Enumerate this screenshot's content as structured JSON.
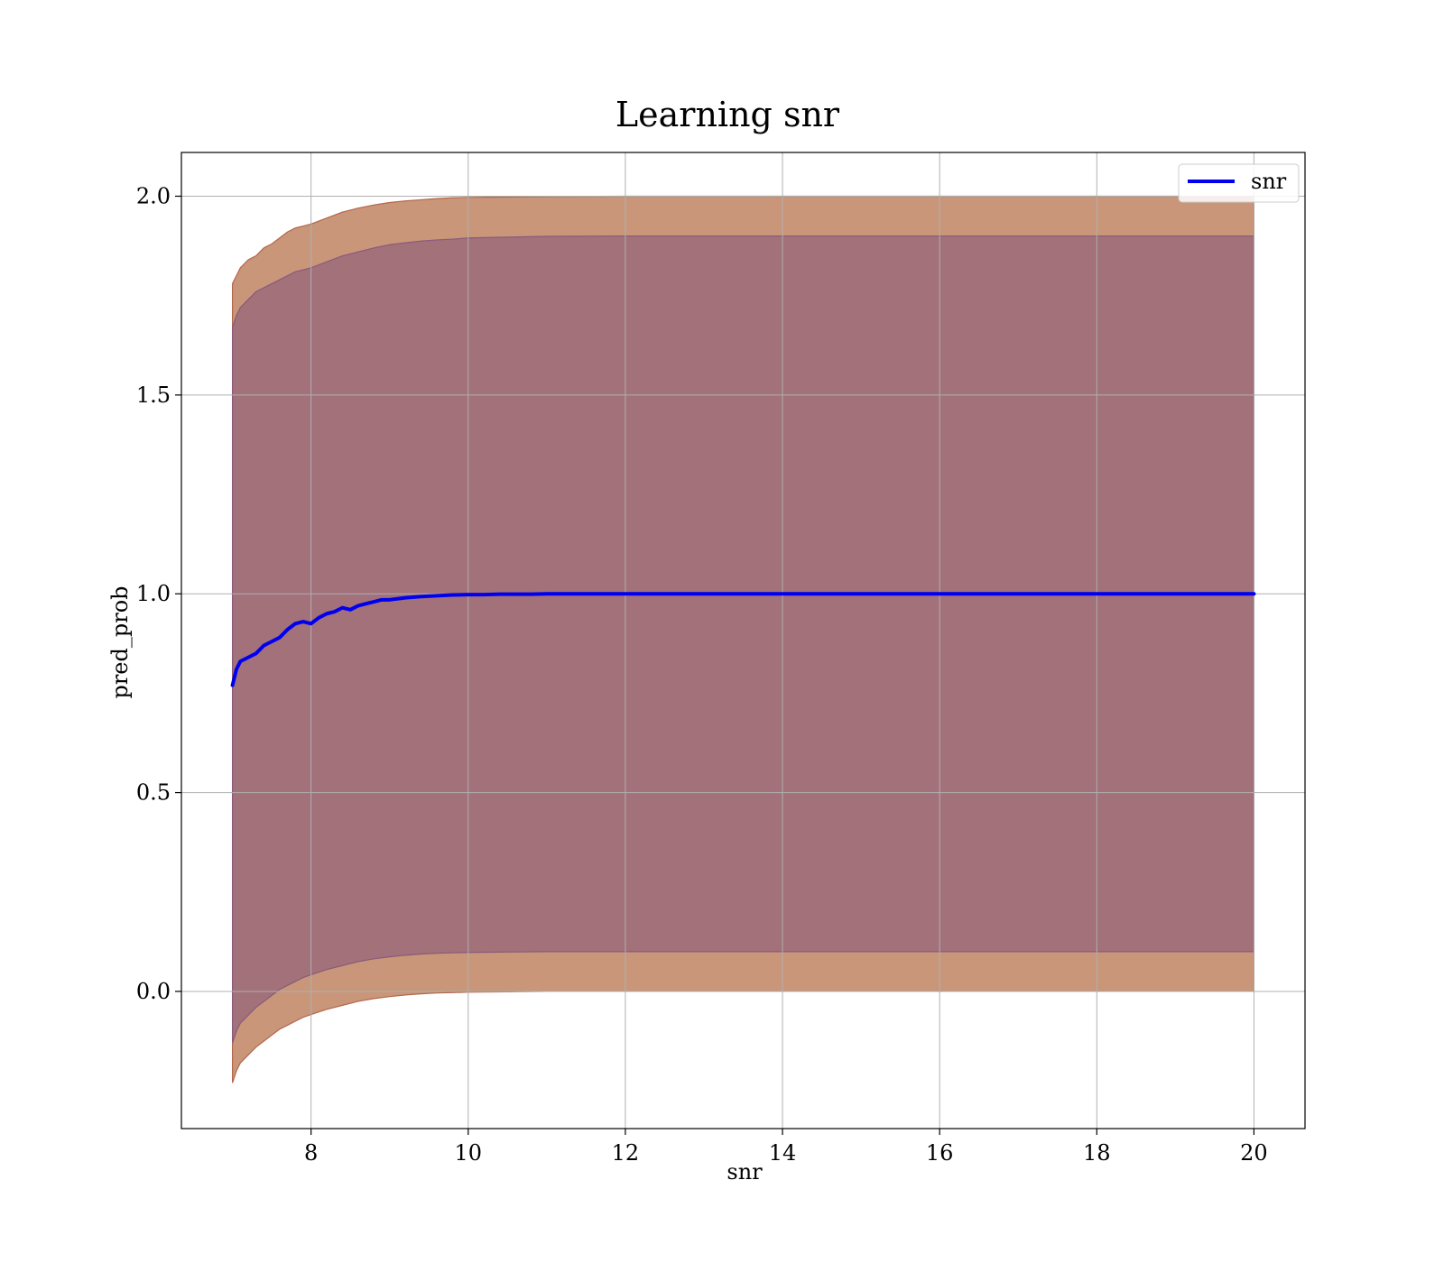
{
  "chart_data": {
    "type": "line",
    "title": "Learning snr",
    "xlabel": "snr",
    "ylabel": "pred_prob",
    "xlim": [
      6.35,
      20.65
    ],
    "ylim": [
      -0.345,
      2.11
    ],
    "xticks": [
      8,
      10,
      12,
      14,
      16,
      18,
      20
    ],
    "yticks": [
      0.0,
      0.5,
      1.0,
      1.5,
      2.0
    ],
    "xtick_labels": [
      "8",
      "10",
      "12",
      "14",
      "16",
      "18",
      "20"
    ],
    "ytick_labels": [
      "0.0",
      "0.5",
      "1.0",
      "1.5",
      "2.0"
    ],
    "grid": true,
    "legend": {
      "position": "top-right",
      "entries": [
        "snr"
      ]
    },
    "series": [
      {
        "name": "snr",
        "color": "#0000ee",
        "x": [
          7.0,
          7.05,
          7.1,
          7.2,
          7.3,
          7.4,
          7.5,
          7.6,
          7.7,
          7.8,
          7.9,
          8.0,
          8.1,
          8.2,
          8.3,
          8.4,
          8.5,
          8.6,
          8.7,
          8.8,
          8.9,
          9.0,
          9.2,
          9.4,
          9.6,
          9.8,
          10.0,
          10.2,
          10.4,
          10.6,
          10.8,
          11.0,
          11.5,
          12.0,
          13.0,
          14.0,
          16.0,
          18.0,
          20.0
        ],
        "y": [
          0.77,
          0.81,
          0.83,
          0.84,
          0.85,
          0.87,
          0.88,
          0.89,
          0.91,
          0.925,
          0.93,
          0.925,
          0.94,
          0.95,
          0.955,
          0.965,
          0.96,
          0.97,
          0.975,
          0.98,
          0.985,
          0.985,
          0.99,
          0.993,
          0.995,
          0.997,
          0.998,
          0.998,
          0.999,
          0.999,
          0.999,
          1.0,
          1.0,
          1.0,
          1.0,
          1.0,
          1.0,
          1.0,
          1.0
        ]
      }
    ],
    "bands": [
      {
        "color": "#c9967a",
        "edge_color": "#b5664a",
        "x": [
          7.0,
          7.05,
          7.1,
          7.2,
          7.3,
          7.4,
          7.5,
          7.6,
          7.7,
          7.8,
          7.9,
          8.0,
          8.2,
          8.4,
          8.6,
          8.8,
          9.0,
          9.2,
          9.4,
          9.6,
          9.8,
          10.0,
          10.5,
          11.0,
          12.0,
          14.0,
          17.0,
          20.0
        ],
        "upper": [
          1.78,
          1.8,
          1.82,
          1.84,
          1.85,
          1.87,
          1.88,
          1.895,
          1.91,
          1.92,
          1.925,
          1.93,
          1.945,
          1.96,
          1.97,
          1.978,
          1.984,
          1.988,
          1.991,
          1.994,
          1.996,
          1.997,
          1.998,
          1.999,
          2.0,
          2.0,
          2.0,
          2.0
        ],
        "lower": [
          -0.23,
          -0.2,
          -0.18,
          -0.16,
          -0.14,
          -0.125,
          -0.11,
          -0.095,
          -0.085,
          -0.075,
          -0.065,
          -0.058,
          -0.045,
          -0.035,
          -0.025,
          -0.018,
          -0.013,
          -0.009,
          -0.006,
          -0.004,
          -0.003,
          -0.002,
          -0.001,
          0.0,
          0.0,
          0.0,
          0.0,
          0.0
        ]
      },
      {
        "color": "#a2717a",
        "edge_color": "#8a5a7a",
        "x": [
          7.0,
          7.05,
          7.1,
          7.2,
          7.3,
          7.4,
          7.5,
          7.6,
          7.7,
          7.8,
          7.9,
          8.0,
          8.2,
          8.4,
          8.6,
          8.8,
          9.0,
          9.2,
          9.4,
          9.6,
          9.8,
          10.0,
          10.5,
          11.0,
          12.0,
          14.0,
          17.0,
          20.0
        ],
        "upper": [
          1.67,
          1.7,
          1.72,
          1.74,
          1.76,
          1.77,
          1.78,
          1.79,
          1.8,
          1.81,
          1.815,
          1.82,
          1.835,
          1.85,
          1.86,
          1.87,
          1.878,
          1.883,
          1.887,
          1.89,
          1.892,
          1.895,
          1.897,
          1.899,
          1.9,
          1.9,
          1.9,
          1.9
        ],
        "lower": [
          -0.13,
          -0.1,
          -0.08,
          -0.06,
          -0.04,
          -0.025,
          -0.01,
          0.005,
          0.015,
          0.025,
          0.035,
          0.042,
          0.055,
          0.065,
          0.075,
          0.082,
          0.087,
          0.091,
          0.094,
          0.096,
          0.097,
          0.098,
          0.099,
          0.1,
          0.1,
          0.1,
          0.1,
          0.1
        ]
      }
    ]
  }
}
